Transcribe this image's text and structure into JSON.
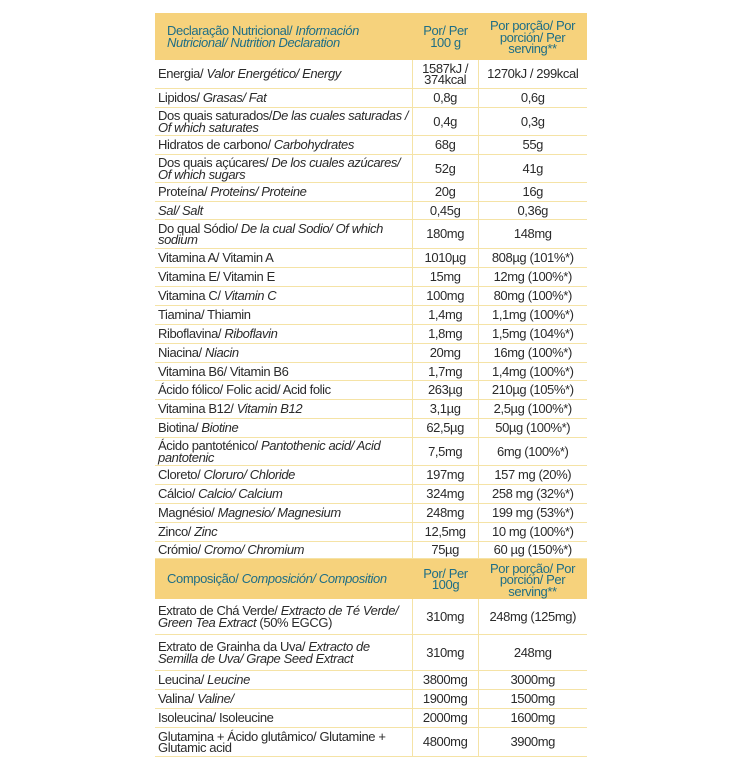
{
  "colors": {
    "header_bg": "#f6d27c",
    "header_text": "#1f6e86",
    "grid": "#f5e3a6"
  },
  "nutrition": {
    "header": {
      "label": [
        {
          "t": "Declaração Nutricional/ ",
          "i": false
        },
        {
          "t": "Información Nutricional/ Nutrition Declaration",
          "i": true
        }
      ],
      "per100": "Por/ Per 100 g",
      "serving": "Por porção/ Por porción/ Per serving**"
    },
    "rows": [
      {
        "h": 28,
        "label": [
          {
            "t": "Energia/ ",
            "i": false
          },
          {
            "t": "Valor Energético/ Energy",
            "i": true
          }
        ],
        "per100": "1587kJ / 374kcal",
        "serving": "1270kJ / 299kcal"
      },
      {
        "h": 18,
        "label": [
          {
            "t": "Lipidos/ ",
            "i": false
          },
          {
            "t": "Grasas/ Fat",
            "i": true
          }
        ],
        "per100": "0,8g",
        "serving": "0,6g"
      },
      {
        "h": 27,
        "label": [
          {
            "t": "Dos quais saturados/",
            "i": false
          },
          {
            "t": "De las cuales saturadas / Of which saturates",
            "i": true
          }
        ],
        "per100": "0,4g",
        "serving": "0,3g"
      },
      {
        "h": 18,
        "label": [
          {
            "t": "Hidratos de carbono/ ",
            "i": false
          },
          {
            "t": "Carbohydrates",
            "i": true
          }
        ],
        "per100": "68g",
        "serving": "55g"
      },
      {
        "h": 27,
        "label": [
          {
            "t": "Dos quais açúcares/ ",
            "i": false
          },
          {
            "t": "De los cuales azúcares/ Of which sugars",
            "i": true
          }
        ],
        "per100": "52g",
        "serving": "41g"
      },
      {
        "h": 18,
        "label": [
          {
            "t": "Proteína/ ",
            "i": false
          },
          {
            "t": "Proteins/ Proteine",
            "i": true
          }
        ],
        "per100": "20g",
        "serving": "16g"
      },
      {
        "h": 17,
        "label": [
          {
            "t": "Sal/ Salt",
            "i": true
          }
        ],
        "per100": "0,45g",
        "serving": "0,36g"
      },
      {
        "h": 28,
        "label": [
          {
            "t": "Do qual Sódio/ ",
            "i": false
          },
          {
            "t": "De la cual Sodio/ Of which sodium",
            "i": true
          }
        ],
        "per100": "180mg",
        "serving": "148mg"
      },
      {
        "h": 18,
        "label": [
          {
            "t": "Vitamina A/ Vitamin A",
            "i": false
          }
        ],
        "per100": "1010µg",
        "serving": "808µg (101%*)"
      },
      {
        "h": 18,
        "label": [
          {
            "t": "Vitamina E/ Vitamin E",
            "i": false
          }
        ],
        "per100": "15mg",
        "serving": "12mg (100%*)"
      },
      {
        "h": 18,
        "label": [
          {
            "t": "Vitamina C/ ",
            "i": false
          },
          {
            "t": "Vitamin C",
            "i": true
          }
        ],
        "per100": "100mg",
        "serving": "80mg (100%*)"
      },
      {
        "h": 18,
        "label": [
          {
            "t": "Tiamina/ Thiamin",
            "i": false
          }
        ],
        "per100": "1,4mg",
        "serving": "1,1mg (100%*)"
      },
      {
        "h": 18,
        "label": [
          {
            "t": "Riboflavina/ ",
            "i": false
          },
          {
            "t": "Riboflavin",
            "i": true
          }
        ],
        "per100": "1,8mg",
        "serving": "1,5mg (104%*)"
      },
      {
        "h": 18,
        "label": [
          {
            "t": "Niacina/ ",
            "i": false
          },
          {
            "t": "Niacin",
            "i": true
          }
        ],
        "per100": "20mg",
        "serving": "16mg (100%*)"
      },
      {
        "h": 17,
        "label": [
          {
            "t": "Vitamina B6/ Vitamin B6",
            "i": false
          }
        ],
        "per100": "1,7mg",
        "serving": "1,4mg (100%*)"
      },
      {
        "h": 18,
        "label": [
          {
            "t": "Ácido fólico/ Folic acid/ Acid folic",
            "i": false
          }
        ],
        "per100": "263µg",
        "serving": "210µg (105%*)"
      },
      {
        "h": 18,
        "label": [
          {
            "t": "Vitamina B12/ ",
            "i": false
          },
          {
            "t": "Vitamin B12",
            "i": true
          }
        ],
        "per100": "3,1µg",
        "serving": "2,5µg (100%*)"
      },
      {
        "h": 18,
        "label": [
          {
            "t": "Biotina/ ",
            "i": false
          },
          {
            "t": "Biotine",
            "i": true
          }
        ],
        "per100": "62,5µg",
        "serving": "50µg (100%*)"
      },
      {
        "h": 27,
        "label": [
          {
            "t": "Ácido pantoténico/ ",
            "i": false
          },
          {
            "t": "Pantothenic acid/ Acid pantotenic",
            "i": true
          }
        ],
        "per100": "7,5mg",
        "serving": "6mg (100%*)"
      },
      {
        "h": 18,
        "label": [
          {
            "t": "Cloreto/ ",
            "i": false
          },
          {
            "t": "Cloruro/ Chloride",
            "i": true
          }
        ],
        "per100": "197mg",
        "serving": "157 mg (20%)"
      },
      {
        "h": 18,
        "label": [
          {
            "t": "Cálcio/ ",
            "i": false
          },
          {
            "t": "Calcio/ Calcium",
            "i": true
          }
        ],
        "per100": "324mg",
        "serving": "258 mg (32%*)"
      },
      {
        "h": 18,
        "label": [
          {
            "t": "Magnésio/ ",
            "i": false
          },
          {
            "t": "Magnesio/ Magnesium",
            "i": true
          }
        ],
        "per100": "248mg",
        "serving": "199 mg (53%*)"
      },
      {
        "h": 18,
        "label": [
          {
            "t": "Zinco/ ",
            "i": false
          },
          {
            "t": "Zinc",
            "i": true
          }
        ],
        "per100": "12,5mg",
        "serving": "10 mg (100%*)"
      },
      {
        "h": 16,
        "label": [
          {
            "t": "Crómio/ ",
            "i": false
          },
          {
            "t": "Cromo/ Chromium",
            "i": true
          }
        ],
        "per100": "75µg",
        "serving": "60 µg (150%*)"
      }
    ]
  },
  "composition": {
    "header": {
      "label": [
        {
          "t": "Composição/ ",
          "i": false
        },
        {
          "t": "Composición/ Composition",
          "i": true
        }
      ],
      "per100": "Por/ Per 100g",
      "serving": "Por porção/ Por porción/ Per serving**"
    },
    "rows": [
      {
        "h": 35,
        "label": [
          {
            "t": "Extrato de Chá Verde/ ",
            "i": false
          },
          {
            "t": "Extracto de Té Verde/ Green Tea Extract",
            "i": true
          },
          {
            "t": " (50% EGCG)",
            "i": false
          }
        ],
        "per100": "310mg",
        "serving": "248mg (125mg)"
      },
      {
        "h": 35,
        "label": [
          {
            "t": "Extrato de Grainha da Uva/ ",
            "i": false
          },
          {
            "t": "Extracto de Semilla de Uva/ Grape Seed Extract",
            "i": true
          }
        ],
        "per100": "310mg",
        "serving": "248mg"
      },
      {
        "h": 18,
        "label": [
          {
            "t": "Leucina/ ",
            "i": false
          },
          {
            "t": "Leucine",
            "i": true
          }
        ],
        "per100": "3800mg",
        "serving": "3000mg"
      },
      {
        "h": 18,
        "label": [
          {
            "t": "Valina/ ",
            "i": false
          },
          {
            "t": "Valine/",
            "i": true
          }
        ],
        "per100": "1900mg",
        "serving": "1500mg"
      },
      {
        "h": 18,
        "label": [
          {
            "t": "Isoleucina/ Isoleucine",
            "i": false
          }
        ],
        "per100": "2000mg",
        "serving": "1600mg"
      },
      {
        "h": 28,
        "label": [
          {
            "t": "Glutamina + Ácido glutâmico/ Glutamine + Glutamic acid",
            "i": false
          }
        ],
        "per100": "4800mg",
        "serving": "3900mg"
      }
    ]
  }
}
